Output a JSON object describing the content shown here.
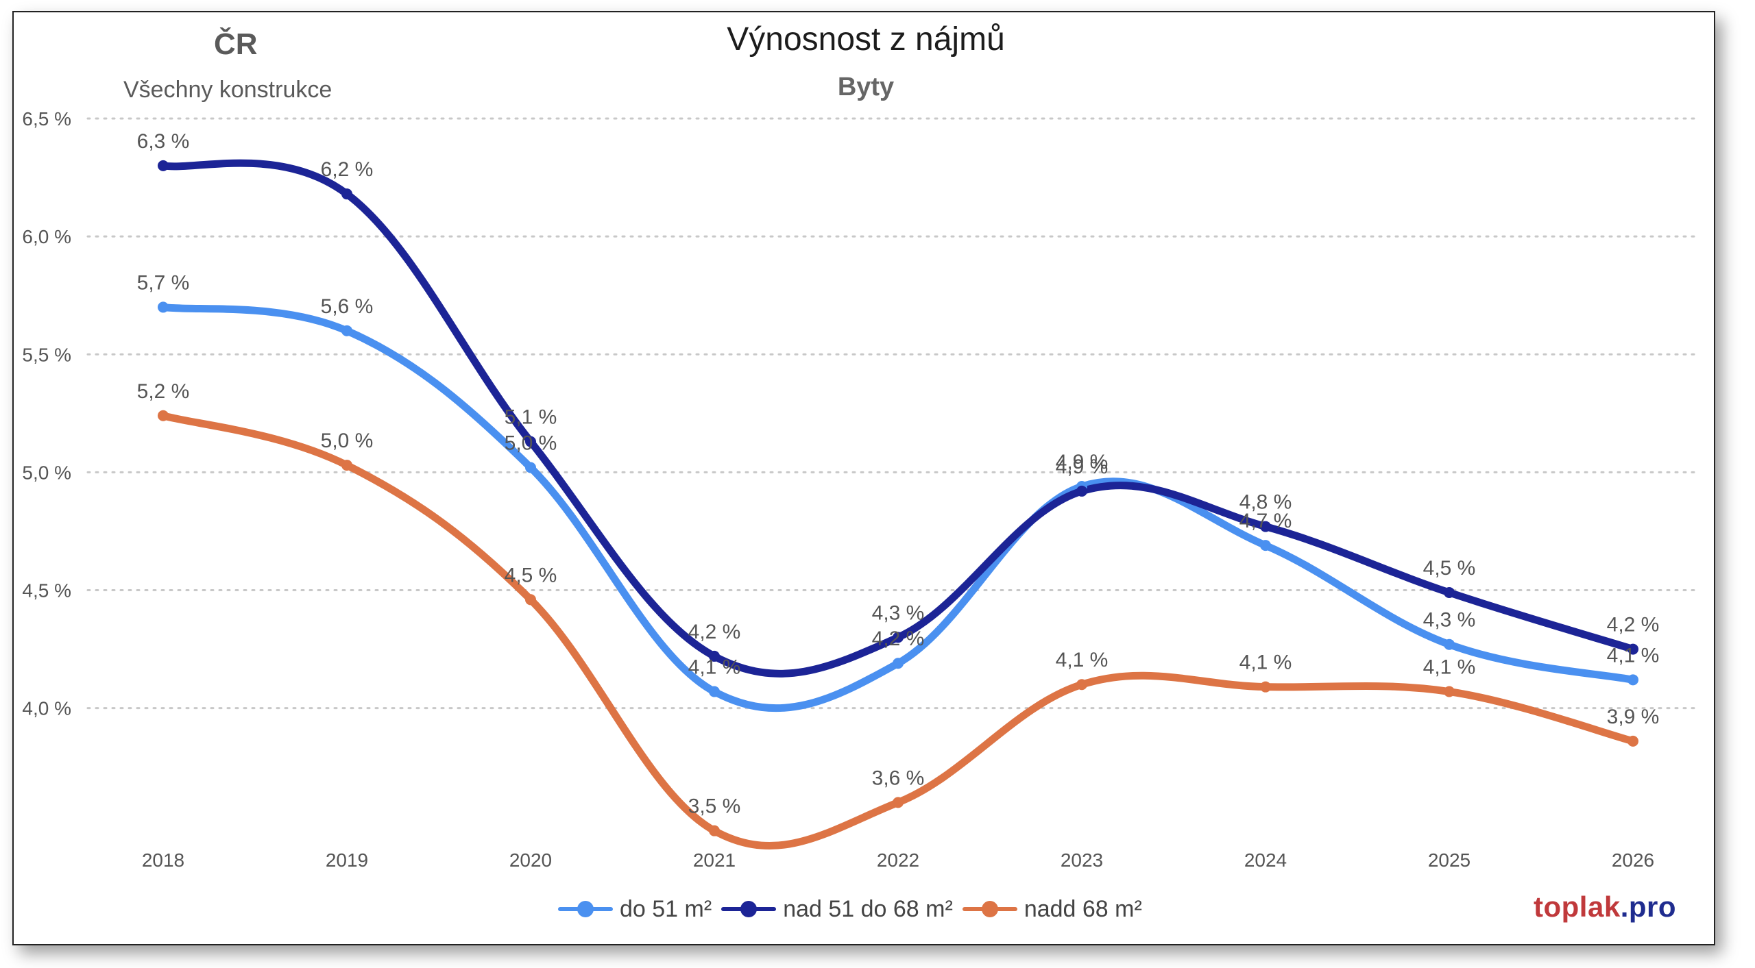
{
  "header": {
    "region": "ČR",
    "region_subtitle": "Všechny konstrukce"
  },
  "brand": {
    "name": "toplak",
    "tld": ".pro",
    "name_color": "#c0393b",
    "tld_color": "#1f2c8f"
  },
  "chart_data": {
    "type": "line",
    "title": "Výnosnost z nájmů",
    "subtitle": "Byty",
    "xlabel": "",
    "ylabel": "",
    "categories": [
      "2018",
      "2019",
      "2020",
      "2021",
      "2022",
      "2023",
      "2024",
      "2025",
      "2026"
    ],
    "ylim": [
      3.45,
      6.5
    ],
    "yticks": [
      4.0,
      4.5,
      5.0,
      5.5,
      6.0,
      6.5
    ],
    "ytick_labels": [
      "4,0 %",
      "4,5 %",
      "5,0 %",
      "5,5 %",
      "6,0 %",
      "6,5 %"
    ],
    "grid": "horizontal dotted",
    "legend_position": "bottom",
    "series": [
      {
        "name": "do 51 m²",
        "color": "#4a90f0",
        "values": [
          5.7,
          5.6,
          5.02,
          4.07,
          4.19,
          4.94,
          4.69,
          4.27,
          4.12
        ],
        "labels": [
          "5,7 %",
          "5,6 %",
          "5,0 %",
          "4,1 %",
          "4,2 %",
          "4,9 %",
          "4,7 %",
          "4,3 %",
          "4,1 %"
        ]
      },
      {
        "name": "nad 51 do 68 m²",
        "color": "#1c2496",
        "values": [
          6.3,
          6.18,
          5.13,
          4.22,
          4.3,
          4.92,
          4.77,
          4.49,
          4.25
        ],
        "labels": [
          "6,3 %",
          "6,2 %",
          "5,1 %",
          "4,2 %",
          "4,3 %",
          "4,9 %",
          "4,8 %",
          "4,5 %",
          "4,2 %"
        ]
      },
      {
        "name": "nadd 68 m²",
        "color": "#dd7445",
        "values": [
          5.24,
          5.03,
          4.46,
          3.48,
          3.6,
          4.1,
          4.09,
          4.07,
          3.86
        ],
        "labels": [
          "5,2 %",
          "5,0 %",
          "4,5 %",
          "3,5 %",
          "3,6 %",
          "4,1 %",
          "4,1 %",
          "4,1 %",
          "3,9 %"
        ]
      }
    ]
  }
}
